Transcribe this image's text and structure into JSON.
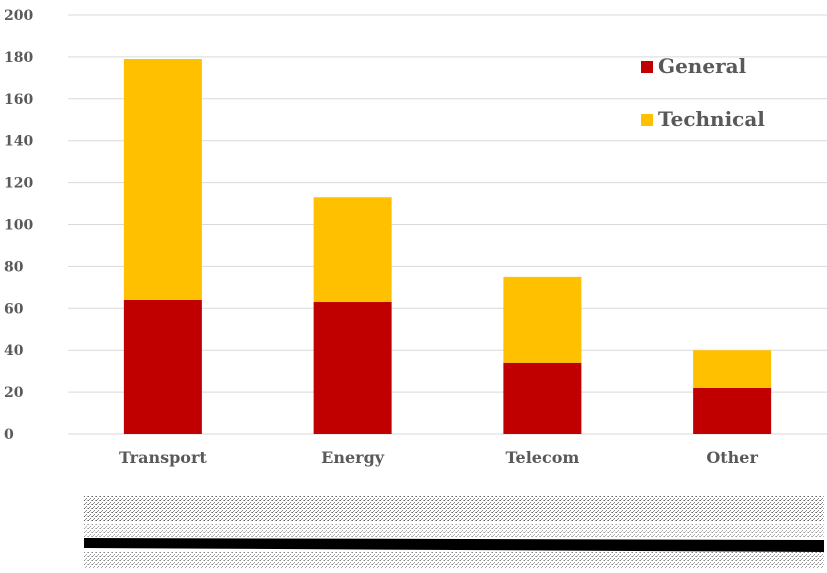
{
  "chart_data": {
    "type": "bar",
    "stacked": true,
    "title": "",
    "xlabel": "",
    "ylabel": "",
    "categories": [
      "Transport",
      "Energy",
      "Telecom",
      "Other"
    ],
    "series": [
      {
        "name": "General",
        "values": [
          64,
          63,
          34,
          22
        ],
        "color": "#c00000"
      },
      {
        "name": "Technical",
        "values": [
          115,
          50,
          41,
          18
        ],
        "color": "#ffc000"
      }
    ],
    "ylim": [
      0,
      200
    ],
    "yticks": [
      0,
      20,
      40,
      60,
      80,
      100,
      120,
      140,
      160,
      180,
      200
    ],
    "grid": true,
    "legend": "top-right"
  },
  "colors": {
    "grid": "#d9d9d9",
    "axis_text": "#595959",
    "footer_band": "#000000"
  }
}
